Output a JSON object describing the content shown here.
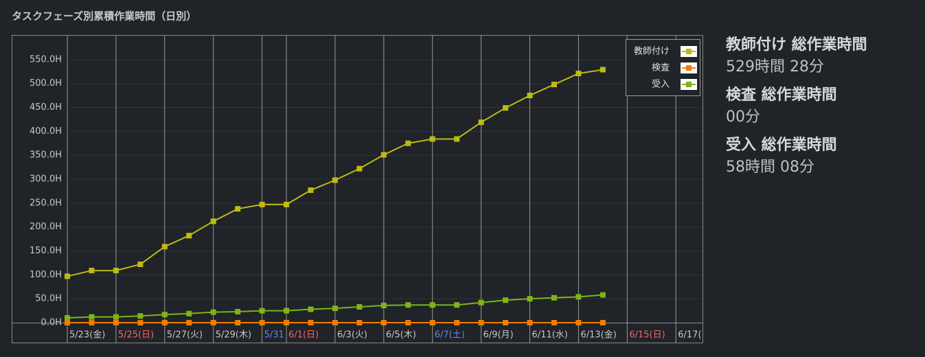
{
  "chart_data": {
    "type": "line",
    "title": "タスクフェーズ別累積作業時間（日別）",
    "categories": [
      "5/23(金)",
      null,
      "5/25(日)",
      null,
      "5/27(火)",
      null,
      "5/29(木)",
      null,
      "5/31",
      "6/1(日)",
      null,
      "6/3(火)",
      null,
      "6/5(木)",
      null,
      "6/7(土)",
      null,
      "6/9(月)",
      null,
      "6/11(水)",
      null,
      "6/13(金)",
      null,
      "6/15(日)",
      null,
      "6/17("
    ],
    "category_colors": [
      null,
      null,
      "#f06a6a",
      null,
      null,
      null,
      null,
      null,
      "#5b8def",
      "#f06a6a",
      null,
      null,
      null,
      null,
      null,
      "#5b8def",
      null,
      null,
      null,
      null,
      null,
      null,
      null,
      "#f06a6a",
      null,
      null
    ],
    "series": [
      {
        "name": "教師付け",
        "color": "#bdbb14",
        "values": [
          97,
          109,
          109,
          122,
          159,
          182,
          212,
          238,
          247,
          247,
          277,
          298,
          322,
          351,
          375,
          384,
          384,
          419,
          449,
          475,
          498,
          521,
          529,
          null,
          null,
          null
        ]
      },
      {
        "name": "検査",
        "color": "#f07d00",
        "values": [
          0,
          0,
          0,
          0,
          0,
          0,
          0,
          0,
          0,
          0,
          0,
          0,
          0,
          0,
          0,
          0,
          0,
          0,
          0,
          0,
          0,
          0,
          0,
          null,
          null,
          null
        ]
      },
      {
        "name": "受入",
        "color": "#7cb518",
        "values": [
          10,
          12,
          12,
          14,
          17,
          19,
          22,
          23,
          25,
          25,
          28,
          30,
          33,
          36,
          37,
          37,
          37,
          42,
          47,
          50,
          52,
          54,
          58,
          null,
          null,
          null
        ]
      }
    ],
    "ylim": [
      0,
      600
    ],
    "yticks": [
      {
        "value": 0,
        "label": "0.0H"
      },
      {
        "value": 50,
        "label": "50.0H"
      },
      {
        "value": 100,
        "label": "100.0H"
      },
      {
        "value": 150,
        "label": "150.0H"
      },
      {
        "value": 200,
        "label": "200.0H"
      },
      {
        "value": 250,
        "label": "250.0H"
      },
      {
        "value": 300,
        "label": "300.0H"
      },
      {
        "value": 350,
        "label": "350.0H"
      },
      {
        "value": 400,
        "label": "400.0H"
      },
      {
        "value": 450,
        "label": "450.0H"
      },
      {
        "value": 500,
        "label": "500.0H"
      },
      {
        "value": 550,
        "label": "550.0H"
      }
    ],
    "grid": true,
    "legend": "top-right"
  },
  "summary": [
    {
      "title": "教師付け 総作業時間",
      "value": "529時間 28分"
    },
    {
      "title": "検査 総作業時間",
      "value": "00分"
    },
    {
      "title": "受入 総作業時間",
      "value": "58時間 08分"
    }
  ]
}
